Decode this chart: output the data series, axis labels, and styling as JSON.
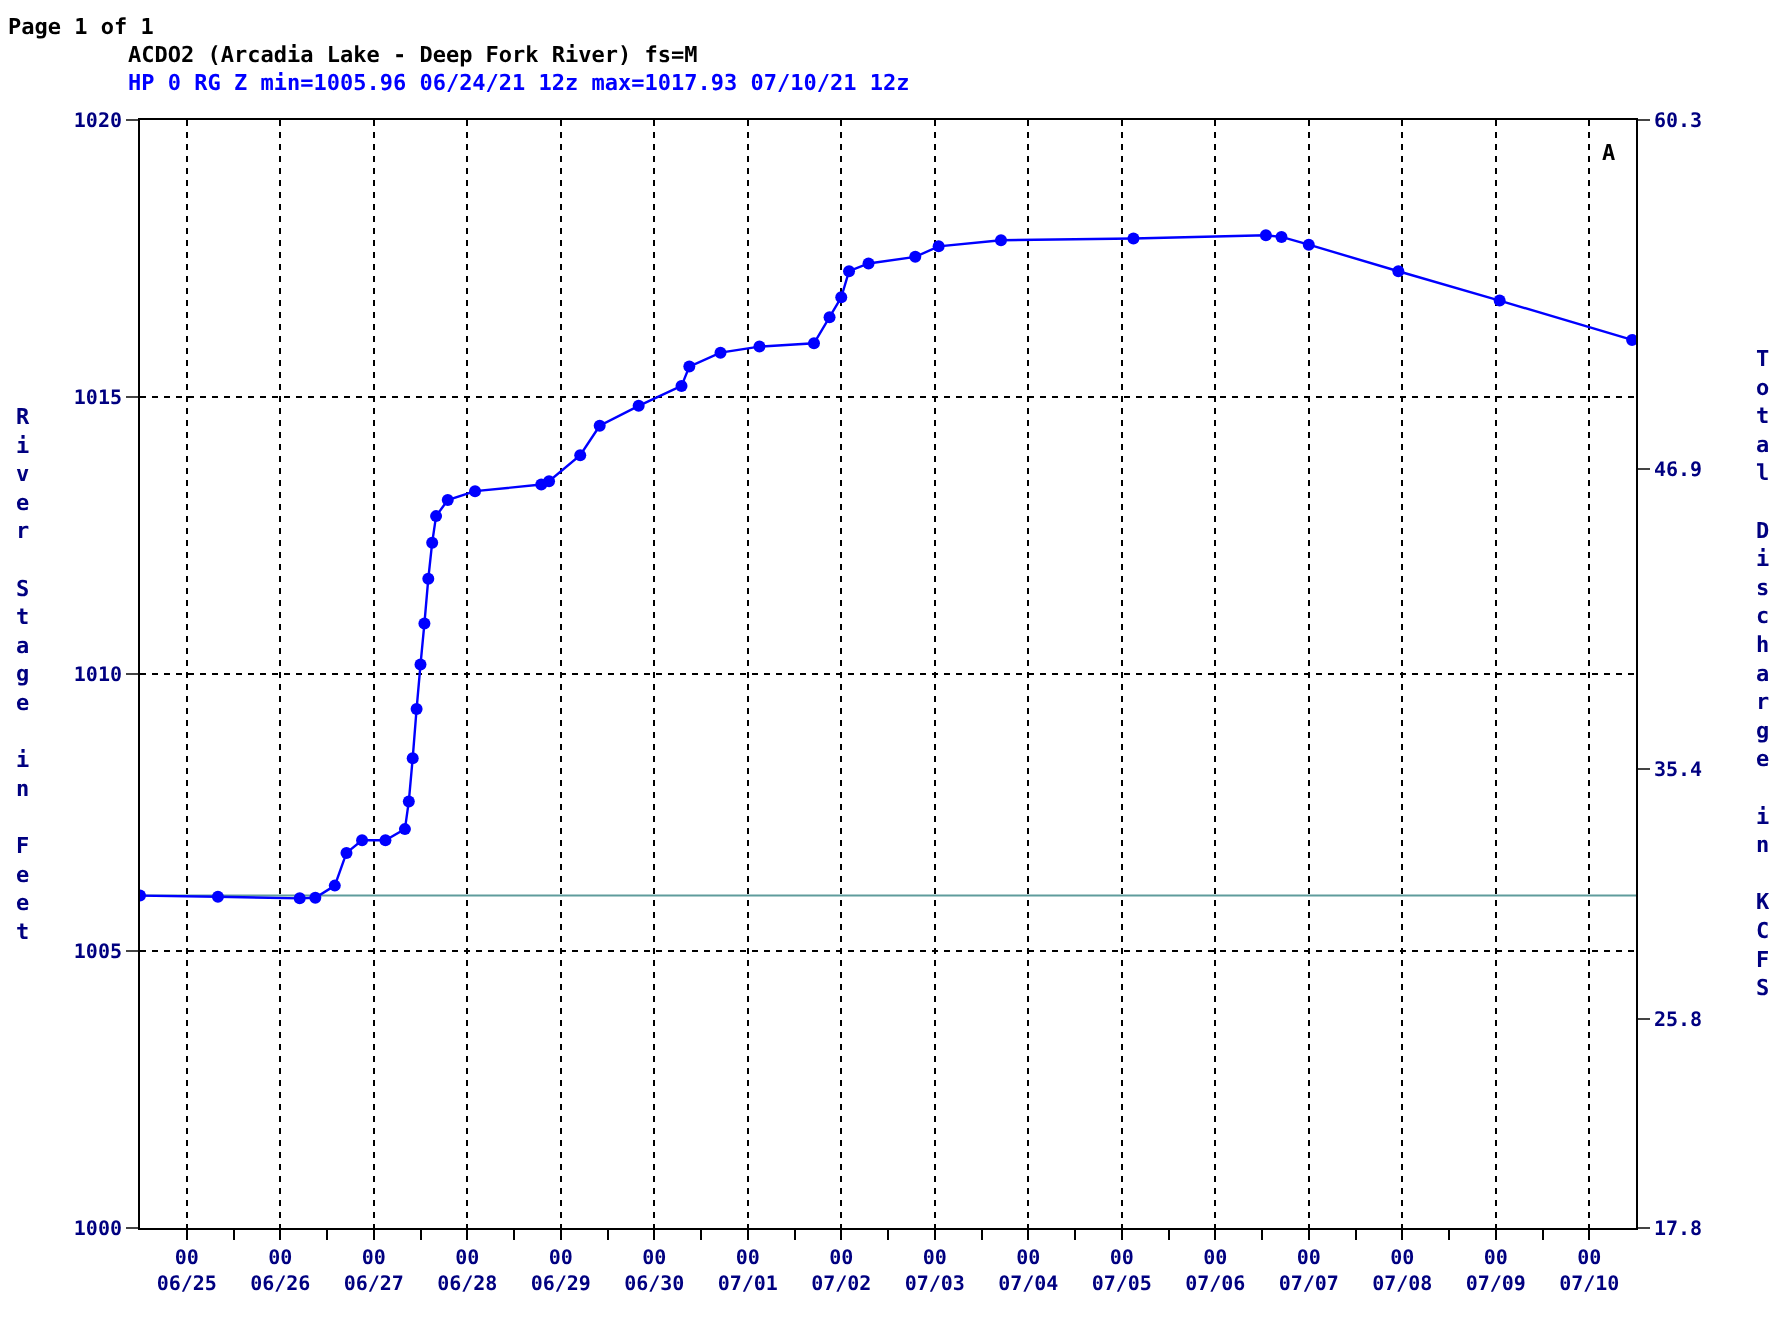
{
  "chart_data": {
    "type": "line",
    "title": "ACDO2 (Arcadia Lake - Deep Fork River) fs=M",
    "subtitle": "HP 0 RG Z min=1005.96 06/24/21 12z max=1017.93 07/10/21 12z",
    "ylabel": "River Stage in Feet",
    "y2label": "Total Discharge in KCFS",
    "annotations": [
      "Page 1 of 1",
      "A"
    ],
    "x": [
      "--06-24T12:00",
      "--06-25T08:00",
      "--06-26T05:00",
      "--06-26T09:00",
      "--06-26T14:00",
      "--06-26T17:00",
      "--06-26T21:00",
      "--06-27T03:00",
      "--06-27T08:00",
      "--06-27T09:00",
      "--06-27T10:00",
      "--06-27T11:00",
      "--06-27T12:00",
      "--06-27T13:00",
      "--06-27T14:00",
      "--06-27T15:00",
      "--06-27T16:00",
      "--06-27T19:00",
      "--06-28T02:00",
      "--06-28T19:00",
      "--06-28T21:00",
      "--06-29T05:00",
      "--06-29T10:00",
      "--06-29T20:00",
      "--06-30T07:00",
      "--06-30T09:00",
      "--06-30T17:00",
      "--07-01T03:00",
      "--07-01T17:00",
      "--07-01T21:00",
      "--07-02T00:00",
      "--07-02T02:00",
      "--07-02T07:00",
      "--07-02T19:00",
      "--07-03T01:00",
      "--07-03T17:00",
      "--07-05T03:00",
      "--07-06T13:00",
      "--07-06T17:00",
      "--07-07T00:00",
      "--07-07T23:00",
      "--07-09T01:00",
      "--07-10T11:00"
    ],
    "series": [
      {
        "color": "#0000ff",
        "values": [
          1006.0,
          1005.98,
          1005.95,
          1005.96,
          1006.18,
          1006.77,
          1007.0,
          1007.0,
          1007.2,
          1007.7,
          1008.48,
          1009.37,
          1010.17,
          1010.91,
          1011.72,
          1012.37,
          1012.85,
          1013.14,
          1013.3,
          1013.42,
          1013.48,
          1013.95,
          1014.48,
          1014.84,
          1015.2,
          1015.55,
          1015.8,
          1015.91,
          1015.97,
          1016.44,
          1016.8,
          1017.27,
          1017.41,
          1017.53,
          1017.72,
          1017.83,
          1017.86,
          1017.92,
          1017.89,
          1017.75,
          1017.27,
          1016.74,
          1016.03
        ]
      }
    ],
    "marker": "circle",
    "line_style": "solid",
    "xlim": [
      "--06-24T12:00",
      "--07-10T12:00"
    ],
    "xticks": [
      {
        "value": "--06-25T00:00",
        "label": "00\n06/25"
      },
      {
        "value": "--06-25T12:00",
        "label": null
      },
      {
        "value": "--06-26T00:00",
        "label": "00\n06/26"
      },
      {
        "value": "--06-26T12:00",
        "label": null
      },
      {
        "value": "--06-27T00:00",
        "label": "00\n06/27"
      },
      {
        "value": "--06-27T12:00",
        "label": null
      },
      {
        "value": "--06-28T00:00",
        "label": "00\n06/28"
      },
      {
        "value": "--06-28T12:00",
        "label": null
      },
      {
        "value": "--06-29T00:00",
        "label": "00\n06/29"
      },
      {
        "value": "--06-29T12:00",
        "label": null
      },
      {
        "value": "--06-30T00:00",
        "label": "00\n06/30"
      },
      {
        "value": "--06-30T12:00",
        "label": null
      },
      {
        "value": "--07-01T00:00",
        "label": "00\n07/01"
      },
      {
        "value": "--07-01T12:00",
        "label": null
      },
      {
        "value": "--07-02T00:00",
        "label": "00\n07/02"
      },
      {
        "value": "--07-02T12:00",
        "label": null
      },
      {
        "value": "--07-03T00:00",
        "label": "00\n07/03"
      },
      {
        "value": "--07-03T12:00",
        "label": null
      },
      {
        "value": "--07-04T00:00",
        "label": "00\n07/04"
      },
      {
        "value": "--07-04T12:00",
        "label": null
      },
      {
        "value": "--07-05T00:00",
        "label": "00\n07/05"
      },
      {
        "value": "--07-05T12:00",
        "label": null
      },
      {
        "value": "--07-06T00:00",
        "label": "00\n07/06"
      },
      {
        "value": "--07-06T12:00",
        "label": null
      },
      {
        "value": "--07-07T00:00",
        "label": "00\n07/07"
      },
      {
        "value": "--07-07T12:00",
        "label": null
      },
      {
        "value": "--07-08T00:00",
        "label": "00\n07/08"
      },
      {
        "value": "--07-08T12:00",
        "label": null
      },
      {
        "value": "--07-09T00:00",
        "label": "00\n07/09"
      },
      {
        "value": "--07-09T12:00",
        "label": null
      },
      {
        "value": "--07-10T00:00",
        "label": "00\n07/10"
      }
    ],
    "ylim": [
      1000,
      1020
    ],
    "yticks": [
      1000,
      1005,
      1010,
      1015,
      1020
    ],
    "y2lim": [
      17.8,
      60.3
    ],
    "y2ticks": [
      17.8,
      25.8,
      35.4,
      46.9,
      60.3
    ],
    "grid": true,
    "ref_lines": [
      {
        "axis": "y",
        "value": 1006,
        "color": "#5f9c9c",
        "line_style": "solid"
      }
    ]
  }
}
